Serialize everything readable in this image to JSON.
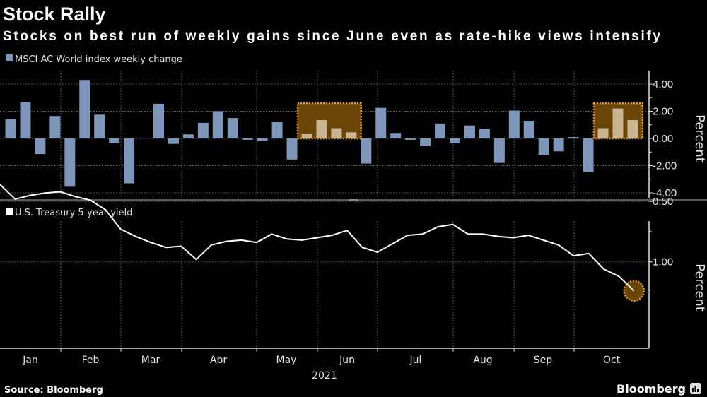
{
  "header": {
    "title": "Stock Rally",
    "subtitle": "Stocks on best run of weekly gains since June even as rate-hike views intensify"
  },
  "footer": {
    "source": "Source: Bloomberg",
    "brand": "Bloomberg"
  },
  "colors": {
    "bar": "#7d96ba",
    "highlight_bar": "#c9b592",
    "highlight_fill": "#6b4508",
    "highlight_border": "#f0a01e",
    "line": "#ffffff",
    "background": "#000000"
  },
  "chart_data": [
    {
      "type": "bar",
      "legend": "MSCI AC World index weekly change",
      "ylabel": "Percent",
      "ylim": [
        -4.6,
        4.6
      ],
      "yticks": [
        "4.00",
        "2.00",
        "0.00",
        "-2.00",
        "-4.00"
      ],
      "ytick_values": [
        4,
        2,
        0,
        -2,
        -4
      ],
      "grid": true,
      "x_period": "weekly, Jan–Oct 2021",
      "values": [
        1.45,
        2.7,
        -1.15,
        1.65,
        -3.55,
        4.3,
        1.75,
        -0.35,
        -3.3,
        0.05,
        2.55,
        -0.4,
        0.3,
        1.15,
        2.0,
        1.5,
        -0.1,
        -0.2,
        1.2,
        -1.55,
        0.35,
        1.35,
        0.75,
        0.45,
        -1.85,
        2.25,
        0.4,
        -0.1,
        -0.55,
        1.1,
        -0.35,
        0.95,
        0.7,
        -1.8,
        2.05,
        1.3,
        -1.2,
        -0.95,
        0.1,
        -2.45,
        0.75,
        2.2,
        1.35
      ],
      "highlight_ranges": [
        [
          20,
          23
        ],
        [
          40,
          42
        ]
      ],
      "highlight_top": 2.6
    },
    {
      "type": "line",
      "legend": "U.S. Treasury 5-year yield",
      "ylabel": "Percent",
      "ylim": [
        0.28,
        1.32
      ],
      "yticks": [
        "1.00",
        "0.50"
      ],
      "ytick_values": [
        1.0,
        0.5
      ],
      "minor_ticks": [
        1.25,
        0.75
      ],
      "grid": true,
      "values": [
        0.36,
        0.48,
        0.45,
        0.43,
        0.42,
        0.46,
        0.49,
        0.57,
        0.73,
        0.79,
        0.84,
        0.88,
        0.87,
        0.98,
        0.86,
        0.83,
        0.82,
        0.84,
        0.77,
        0.81,
        0.82,
        0.8,
        0.78,
        0.74,
        0.88,
        0.92,
        0.85,
        0.78,
        0.77,
        0.71,
        0.69,
        0.77,
        0.77,
        0.79,
        0.8,
        0.78,
        0.82,
        0.86,
        0.95,
        0.93,
        1.06,
        1.12,
        1.24
      ],
      "highlight_last_point": true
    }
  ],
  "x_axis": {
    "months": [
      "Jan",
      "Feb",
      "Mar",
      "Apr",
      "May",
      "Jun",
      "Jul",
      "Aug",
      "Sep",
      "Oct"
    ],
    "year": "2021"
  }
}
